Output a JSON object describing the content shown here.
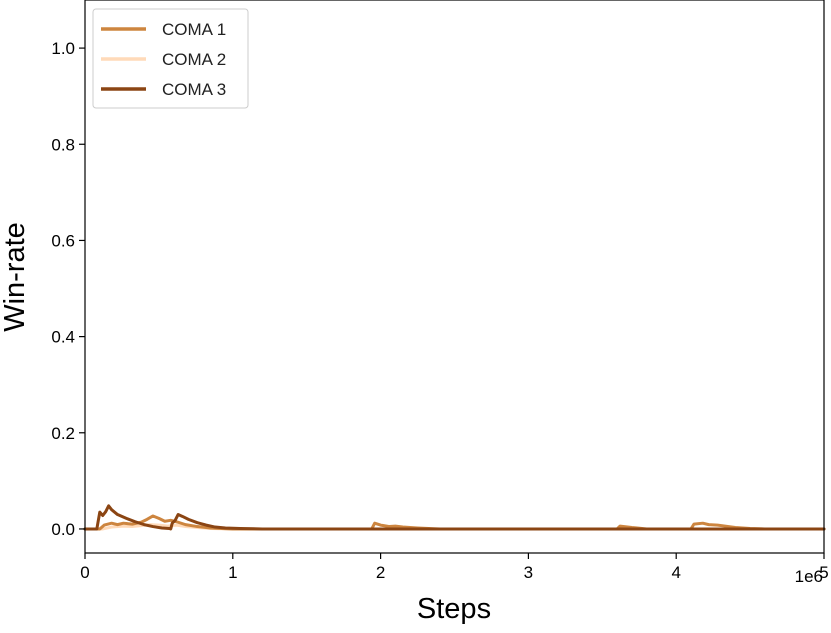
{
  "chart_data": {
    "type": "line",
    "title": "",
    "xlabel": "Steps",
    "ylabel": "Win-rate",
    "x_offset_label": "1e6",
    "xlim": [
      0,
      5000000
    ],
    "ylim": [
      -0.05,
      1.1
    ],
    "x_ticks": [
      0,
      1000000,
      2000000,
      3000000,
      4000000,
      5000000
    ],
    "x_tick_labels": [
      "0",
      "1",
      "2",
      "3",
      "4",
      "5"
    ],
    "y_ticks": [
      0.0,
      0.2,
      0.4,
      0.6,
      0.8,
      1.0
    ],
    "y_tick_labels": [
      "0.0",
      "0.2",
      "0.4",
      "0.6",
      "0.8",
      "1.0"
    ],
    "grid": false,
    "legend_position": "top-left",
    "series": [
      {
        "name": "COMA 1",
        "color": "#CD853F",
        "points": [
          [
            0,
            0.0
          ],
          [
            100000,
            0.0
          ],
          [
            130000,
            0.008
          ],
          [
            180000,
            0.012
          ],
          [
            220000,
            0.009
          ],
          [
            260000,
            0.012
          ],
          [
            320000,
            0.01
          ],
          [
            380000,
            0.014
          ],
          [
            420000,
            0.02
          ],
          [
            460000,
            0.027
          ],
          [
            500000,
            0.022
          ],
          [
            540000,
            0.016
          ],
          [
            580000,
            0.018
          ],
          [
            620000,
            0.015
          ],
          [
            680000,
            0.009
          ],
          [
            760000,
            0.005
          ],
          [
            850000,
            0.002
          ],
          [
            1000000,
            0.0
          ],
          [
            1940000,
            0.0
          ],
          [
            1960000,
            0.012
          ],
          [
            2000000,
            0.008
          ],
          [
            2060000,
            0.005
          ],
          [
            2100000,
            0.006
          ],
          [
            2150000,
            0.004
          ],
          [
            2250000,
            0.002
          ],
          [
            2400000,
            0.0
          ],
          [
            3600000,
            0.0
          ],
          [
            3620000,
            0.006
          ],
          [
            3700000,
            0.003
          ],
          [
            3800000,
            0.0
          ],
          [
            4100000,
            0.0
          ],
          [
            4120000,
            0.01
          ],
          [
            4180000,
            0.012
          ],
          [
            4220000,
            0.009
          ],
          [
            4280000,
            0.008
          ],
          [
            4330000,
            0.006
          ],
          [
            4400000,
            0.003
          ],
          [
            4500000,
            0.001
          ],
          [
            4600000,
            0.0
          ],
          [
            5000000,
            0.0
          ]
        ]
      },
      {
        "name": "COMA 2",
        "color": "#FFDAB9",
        "points": [
          [
            0,
            0.0
          ],
          [
            120000,
            0.0
          ],
          [
            180000,
            0.004
          ],
          [
            260000,
            0.006
          ],
          [
            320000,
            0.005
          ],
          [
            380000,
            0.007
          ],
          [
            440000,
            0.009
          ],
          [
            500000,
            0.008
          ],
          [
            560000,
            0.006
          ],
          [
            620000,
            0.008
          ],
          [
            680000,
            0.005
          ],
          [
            760000,
            0.003
          ],
          [
            850000,
            0.001
          ],
          [
            1000000,
            0.0
          ],
          [
            5000000,
            0.0
          ]
        ]
      },
      {
        "name": "COMA 3",
        "color": "#8B4513",
        "points": [
          [
            0,
            0.0
          ],
          [
            80000,
            0.0
          ],
          [
            100000,
            0.035
          ],
          [
            120000,
            0.028
          ],
          [
            140000,
            0.036
          ],
          [
            160000,
            0.048
          ],
          [
            180000,
            0.04
          ],
          [
            220000,
            0.03
          ],
          [
            280000,
            0.022
          ],
          [
            340000,
            0.015
          ],
          [
            400000,
            0.009
          ],
          [
            460000,
            0.005
          ],
          [
            520000,
            0.002
          ],
          [
            570000,
            0.001
          ],
          [
            580000,
            0.0
          ],
          [
            590000,
            0.012
          ],
          [
            610000,
            0.018
          ],
          [
            630000,
            0.03
          ],
          [
            660000,
            0.026
          ],
          [
            700000,
            0.02
          ],
          [
            760000,
            0.013
          ],
          [
            820000,
            0.008
          ],
          [
            880000,
            0.004
          ],
          [
            950000,
            0.002
          ],
          [
            1050000,
            0.001
          ],
          [
            1200000,
            0.0
          ],
          [
            5000000,
            0.0
          ]
        ]
      }
    ]
  }
}
